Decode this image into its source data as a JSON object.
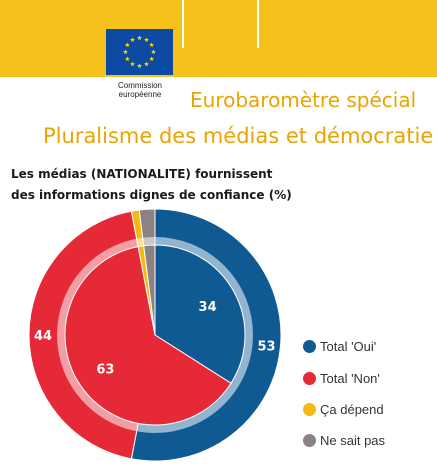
{
  "header": {
    "logo_line1": "Commission",
    "logo_line2": "européenne",
    "series_title": "Eurobaromètre spécial",
    "report_title": "Pluralisme des médias et démocratie"
  },
  "colors": {
    "header_band": "#f6c11a",
    "flag_blue": "#0d4aa3",
    "star_yellow": "#ffdd00",
    "oui": "#0f5a93",
    "non": "#e52936",
    "depend": "#f5b914",
    "nsp": "#8c8284"
  },
  "chart_data": {
    "type": "pie",
    "title_lines": [
      "Les médias (NATIONALITE) fournissent",
      "des informations dignes de confiance  (%)"
    ],
    "legend_position": "right",
    "categories": [
      "Total 'Oui'",
      "Total 'Non'",
      "Ça dépend",
      "Ne sait pas"
    ],
    "outer_ring": {
      "values": [
        53,
        44,
        1,
        2
      ],
      "labels": [
        "53",
        "44",
        "",
        ""
      ]
    },
    "inner_pie": {
      "values": [
        34,
        63,
        1,
        2
      ],
      "labels": [
        "34",
        "63",
        "",
        ""
      ]
    }
  }
}
